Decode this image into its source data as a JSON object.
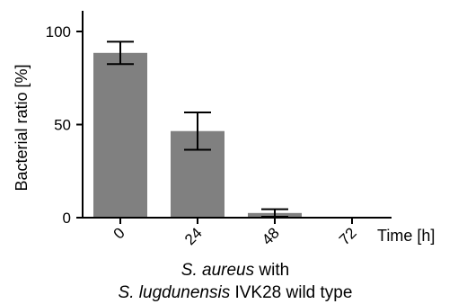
{
  "chart_data": {
    "type": "bar",
    "categories": [
      "0",
      "24",
      "48",
      "72"
    ],
    "values": [
      88.5,
      46.5,
      2.5,
      0
    ],
    "errors": [
      6,
      10,
      2,
      0
    ],
    "ylim": [
      0,
      100
    ],
    "yticks": [
      0,
      50,
      100
    ],
    "ylabel": "Bacterial ratio [%]",
    "xlabel": "Time [h]",
    "caption": {
      "line1_italic": "S. aureus",
      "line1_rest": " with",
      "line2_italic": "S. lugdunensis",
      "line2_rest": " IVK28 wild type"
    },
    "bar_color": "#808080",
    "grid": false
  }
}
